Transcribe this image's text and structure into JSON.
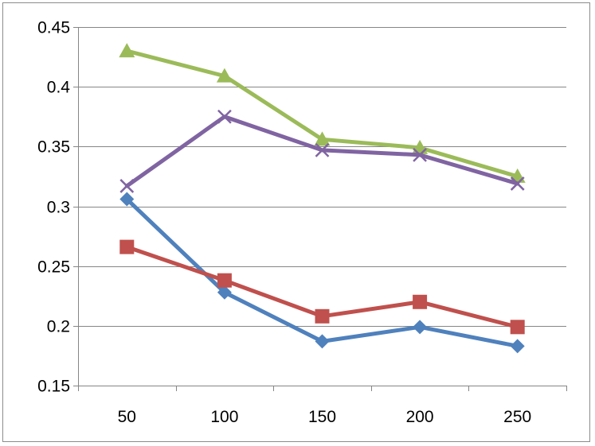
{
  "chart_data": {
    "type": "line",
    "categories": [
      "50",
      "100",
      "150",
      "200",
      "250"
    ],
    "x": [
      50,
      100,
      150,
      200,
      250
    ],
    "ylim": [
      0.15,
      0.45
    ],
    "yticks": [
      0.15,
      0.2,
      0.25,
      0.3,
      0.35,
      0.4,
      0.45
    ],
    "ytick_labels": [
      "0.15",
      "0.2",
      "0.25",
      "0.3",
      "0.35",
      "0.4",
      "0.45"
    ],
    "grid": true,
    "legend": "none",
    "series": [
      {
        "color": "#4f81bd",
        "marker": "diamond",
        "values": [
          0.306,
          0.228,
          0.187,
          0.199,
          0.183
        ]
      },
      {
        "color": "#c0504d",
        "marker": "square",
        "values": [
          0.266,
          0.238,
          0.208,
          0.22,
          0.199
        ]
      },
      {
        "color": "#9bbb59",
        "marker": "triangle",
        "values": [
          0.43,
          0.409,
          0.356,
          0.349,
          0.325
        ]
      },
      {
        "color": "#8064a2",
        "marker": "x",
        "values": [
          0.317,
          0.375,
          0.347,
          0.343,
          0.319
        ]
      }
    ]
  }
}
